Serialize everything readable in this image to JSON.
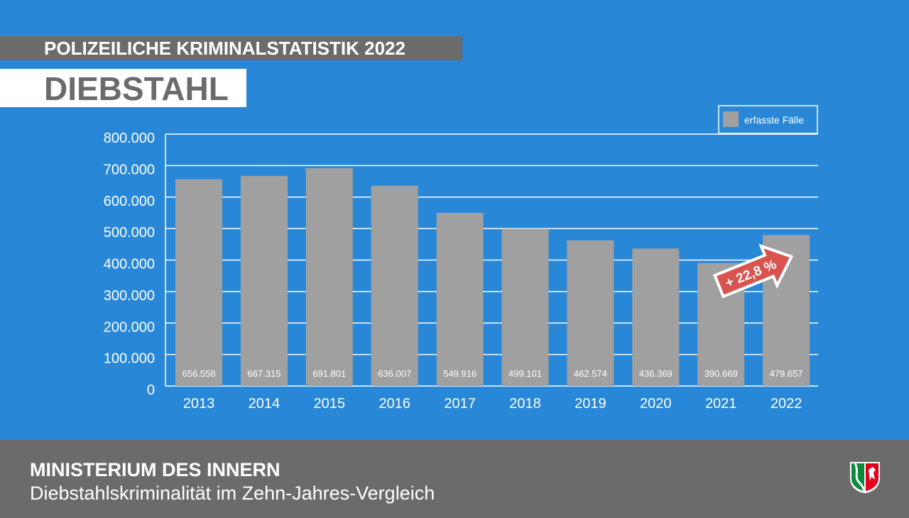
{
  "header": {
    "supertitle": "POLIZEILICHE KRIMINALSTATISTIK 2022",
    "title": "DIEBSTAHL"
  },
  "chart_data": {
    "type": "bar",
    "categories": [
      "2013",
      "2014",
      "2015",
      "2016",
      "2017",
      "2018",
      "2019",
      "2020",
      "2021",
      "2022"
    ],
    "values": [
      656558,
      667315,
      691801,
      636007,
      549916,
      499101,
      462574,
      436369,
      390669,
      479657
    ],
    "value_labels": [
      "656.558",
      "667.315",
      "691.801",
      "636.007",
      "549.916",
      "499.101",
      "462.574",
      "436.369",
      "390.669",
      "479.657"
    ],
    "yticks": [
      0,
      100000,
      200000,
      300000,
      400000,
      500000,
      600000,
      700000,
      800000
    ],
    "ytick_labels": [
      "0",
      "100.000",
      "200.000",
      "300.000",
      "400.000",
      "500.000",
      "600.000",
      "700.000",
      "800.000"
    ],
    "ylim": [
      0,
      800000
    ],
    "legend": {
      "label": "erfasste Fälle",
      "position": "top-right"
    },
    "annotation": "+ 22,8 %",
    "grid": true,
    "colors": {
      "bar": "#a0a0a0",
      "background": "#2887d7",
      "arrow": "#d9534f"
    }
  },
  "footer": {
    "org": "MINISTERIUM DES INNERN",
    "subtitle": "Diebstahlskriminalität im Zehn-Jahres-Vergleich"
  }
}
